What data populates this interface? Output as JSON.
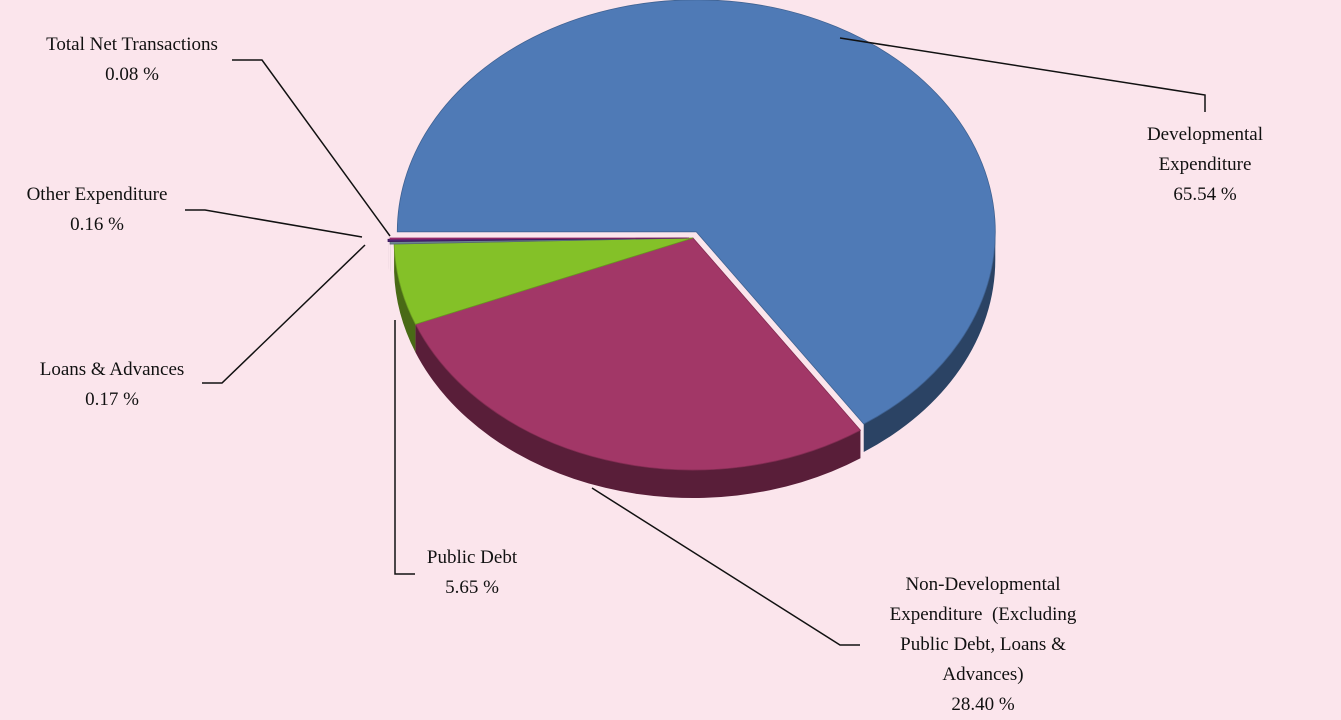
{
  "chart_data": {
    "type": "pie",
    "categories": [
      "Developmental Expenditure",
      "Non-Developmental Expenditure  (Excluding Public Debt, Loans & Advances)",
      "Public Debt",
      "Loans & Advances",
      "Other Expenditure",
      "Total Net Transactions"
    ],
    "values": [
      65.54,
      28.4,
      5.65,
      0.17,
      0.16,
      0.08
    ],
    "value_labels": [
      "65.54 %",
      "28.40 %",
      "5.65 %",
      "0.17 %",
      "0.16 %",
      "0.08 %"
    ],
    "colors": [
      "#4f7ab6",
      "#a23767",
      "#84c128",
      "#6d8593",
      "#4a2173",
      "#b2307e"
    ]
  }
}
